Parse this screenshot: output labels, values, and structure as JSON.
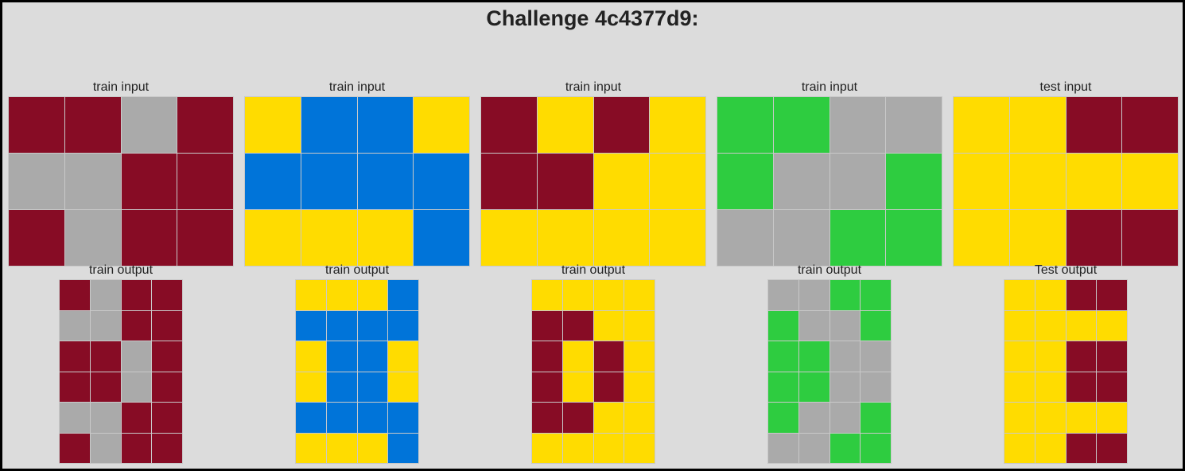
{
  "title": "Challenge 4c4377d9:",
  "palette": {
    "0": "#000000",
    "1": "#0074D9",
    "2": "#FF4136",
    "3": "#2ECC40",
    "4": "#FFDC00",
    "5": "#AAAAAA",
    "6": "#F012BE",
    "7": "#FF851B",
    "8": "#7FDBFF",
    "9": "#870C25"
  },
  "inputs": [
    {
      "label": "train input",
      "grid": [
        [
          9,
          9,
          5,
          9
        ],
        [
          5,
          5,
          9,
          9
        ],
        [
          9,
          5,
          9,
          9
        ]
      ]
    },
    {
      "label": "train input",
      "grid": [
        [
          4,
          1,
          1,
          4
        ],
        [
          1,
          1,
          1,
          1
        ],
        [
          4,
          4,
          4,
          1
        ]
      ]
    },
    {
      "label": "train input",
      "grid": [
        [
          9,
          4,
          9,
          4
        ],
        [
          9,
          9,
          4,
          4
        ],
        [
          4,
          4,
          4,
          4
        ]
      ]
    },
    {
      "label": "train input",
      "grid": [
        [
          3,
          3,
          5,
          5
        ],
        [
          3,
          5,
          5,
          3
        ],
        [
          5,
          5,
          3,
          3
        ]
      ]
    },
    {
      "label": "test input",
      "grid": [
        [
          4,
          4,
          9,
          9
        ],
        [
          4,
          4,
          4,
          4
        ],
        [
          4,
          4,
          9,
          9
        ]
      ]
    }
  ],
  "outputs": [
    {
      "label": "train output",
      "grid": [
        [
          9,
          5,
          9,
          9
        ],
        [
          5,
          5,
          9,
          9
        ],
        [
          9,
          9,
          5,
          9
        ],
        [
          9,
          9,
          5,
          9
        ],
        [
          5,
          5,
          9,
          9
        ],
        [
          9,
          5,
          9,
          9
        ]
      ]
    },
    {
      "label": "train output",
      "grid": [
        [
          4,
          4,
          4,
          1
        ],
        [
          1,
          1,
          1,
          1
        ],
        [
          4,
          1,
          1,
          4
        ],
        [
          4,
          1,
          1,
          4
        ],
        [
          1,
          1,
          1,
          1
        ],
        [
          4,
          4,
          4,
          1
        ]
      ]
    },
    {
      "label": "train output",
      "grid": [
        [
          4,
          4,
          4,
          4
        ],
        [
          9,
          9,
          4,
          4
        ],
        [
          9,
          4,
          9,
          4
        ],
        [
          9,
          4,
          9,
          4
        ],
        [
          9,
          9,
          4,
          4
        ],
        [
          4,
          4,
          4,
          4
        ]
      ]
    },
    {
      "label": "train output",
      "grid": [
        [
          5,
          5,
          3,
          3
        ],
        [
          3,
          5,
          5,
          3
        ],
        [
          3,
          3,
          5,
          5
        ],
        [
          3,
          3,
          5,
          5
        ],
        [
          3,
          5,
          5,
          3
        ],
        [
          5,
          5,
          3,
          3
        ]
      ]
    },
    {
      "label": "Test output",
      "grid": [
        [
          4,
          4,
          9,
          9
        ],
        [
          4,
          4,
          4,
          4
        ],
        [
          4,
          4,
          9,
          9
        ],
        [
          4,
          4,
          9,
          9
        ],
        [
          4,
          4,
          4,
          4
        ],
        [
          4,
          4,
          9,
          9
        ]
      ]
    }
  ]
}
